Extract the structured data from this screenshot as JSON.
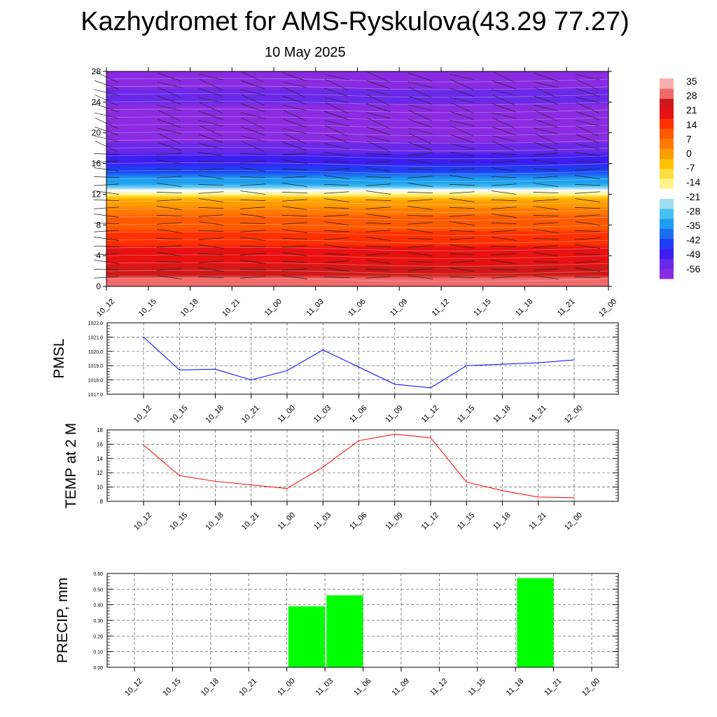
{
  "page": {
    "title": "Kazhydromet for AMS-Ryskulova(43.29 77.27)",
    "subtitle": "10 May 2025"
  },
  "colors": {
    "pmsl_line": "#0000ff",
    "temp_line": "#ff0000",
    "precip_bar": "#00ff00",
    "grid": "#555555",
    "colorbar": [
      "#8a2be2",
      "#6a28e8",
      "#3c1ef0",
      "#1f3cf5",
      "#1e6ff0",
      "#1e9ef0",
      "#46c0f0",
      "#9edcf0",
      "#ffffff",
      "#fff48a",
      "#ffe040",
      "#ffc000",
      "#ff9c00",
      "#ff7a00",
      "#ff5a00",
      "#ff3000",
      "#e81010",
      "#d01818",
      "#f06a6a",
      "#f8b0b0"
    ]
  },
  "chart_data": [
    {
      "type": "heatmap",
      "name": "temperature-cross-section",
      "x": [
        "10_12",
        "10_15",
        "10_18",
        "10_21",
        "11_00",
        "11_03",
        "11_06",
        "11_09",
        "11_12",
        "11_15",
        "11_18",
        "11_21",
        "12_00"
      ],
      "y_ticks": [
        0,
        4,
        8,
        12,
        16,
        20,
        24,
        28
      ],
      "ylim": [
        0,
        28
      ],
      "colorbar_ticks": [
        "35",
        "28",
        "21",
        "14",
        "7",
        "0",
        "-7",
        "-14",
        "-21",
        "-28",
        "-35",
        "-42",
        "-49",
        "-56"
      ],
      "colorbar_range": [
        -63,
        42
      ],
      "profile": [
        [
          0,
          35
        ],
        [
          2,
          28
        ],
        [
          5,
          21
        ],
        [
          8,
          14
        ],
        [
          10,
          7
        ],
        [
          11.3,
          0
        ],
        [
          12,
          -14
        ],
        [
          13,
          -28
        ],
        [
          14.5,
          -40
        ],
        [
          16,
          -49
        ],
        [
          18,
          -56
        ],
        [
          21,
          -63
        ],
        [
          25,
          -56
        ],
        [
          28,
          -63
        ]
      ],
      "wind_barbs": "yes"
    },
    {
      "type": "line",
      "name": "pmsl",
      "ylabel": "PMSL",
      "ylim": [
        1017.0,
        1022.0
      ],
      "y_ticks": [
        "1017.0",
        "1018.0",
        "1019.0",
        "1020.0",
        "1021.0",
        "1022.0"
      ],
      "categories": [
        "10_12",
        "10_15",
        "10_18",
        "10_21",
        "11_00",
        "11_03",
        "11_06",
        "11_09",
        "11_12",
        "11_15",
        "11_18",
        "11_21",
        "12_00"
      ],
      "values": [
        1021.0,
        1018.7,
        1018.75,
        1018.0,
        1018.65,
        1020.1,
        1018.9,
        1017.7,
        1017.45,
        1019.0,
        1019.1,
        1019.2,
        1019.4
      ],
      "grid": true
    },
    {
      "type": "line",
      "name": "temp2m",
      "ylabel": "TEMP at 2 M",
      "ylim": [
        8,
        18
      ],
      "y_ticks": [
        "8",
        "10",
        "12",
        "14",
        "16",
        "18"
      ],
      "categories": [
        "10_12",
        "10_15",
        "10_18",
        "10_21",
        "11_00",
        "11_03",
        "11_06",
        "11_09",
        "11_12",
        "11_15",
        "11_18",
        "11_21",
        "12_00"
      ],
      "values": [
        15.9,
        11.6,
        10.8,
        10.3,
        9.8,
        12.8,
        16.5,
        17.4,
        16.9,
        10.7,
        9.5,
        8.6,
        8.5
      ],
      "grid": true
    },
    {
      "type": "bar",
      "name": "precip",
      "ylabel": "PRECIP, mm",
      "ylim": [
        0,
        0.6
      ],
      "y_ticks": [
        "0.00",
        "0.10",
        "0.20",
        "0.30",
        "0.40",
        "0.50",
        "0.60"
      ],
      "categories": [
        "10_12",
        "10_15",
        "10_18",
        "10_21",
        "11_00",
        "11_03",
        "11_06",
        "11_09",
        "11_12",
        "11_15",
        "11_18",
        "11_21",
        "12_00"
      ],
      "values": [
        0,
        0,
        0,
        0,
        0,
        0.39,
        0.46,
        0,
        0,
        0,
        0,
        0.57,
        0
      ],
      "grid": true
    }
  ]
}
